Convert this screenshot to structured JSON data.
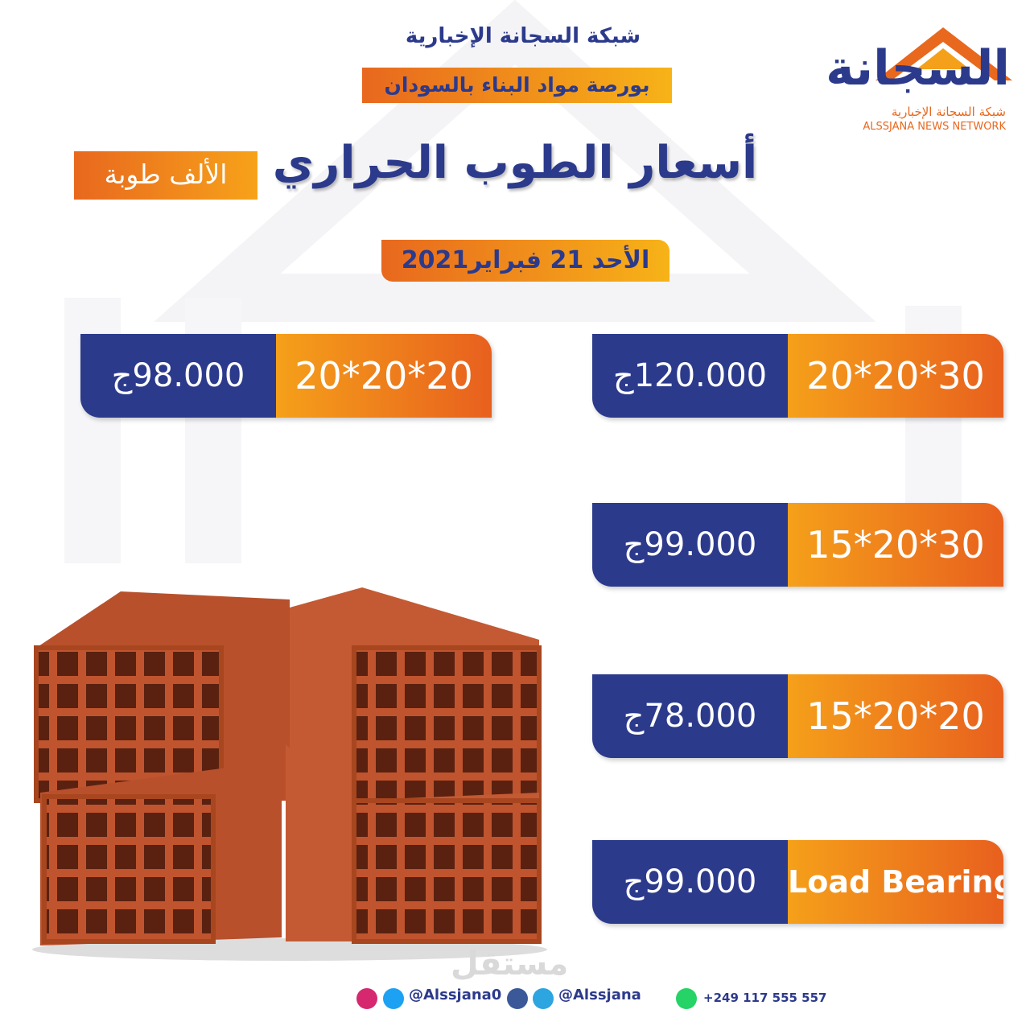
{
  "header": {
    "network": "شبكة السجانة الإخبارية",
    "subtitle": "بورصة مواد البناء بالسودان"
  },
  "logo": {
    "name": "السجانة",
    "tagline": "شبكة السجانة الإخبارية",
    "english": "ALSSJANA NEWS NETWORK"
  },
  "title": "أسعار الطوب الحراري",
  "unit": "الألف طوبة",
  "date": "الأحد 21 فبراير2021",
  "prices": [
    {
      "size": "20*20*30",
      "price": "120.000ج"
    },
    {
      "size": "20*20*20",
      "price": "98.000ج"
    },
    {
      "size": "15*20*30",
      "price": "99.000ج"
    },
    {
      "size": "15*20*20",
      "price": "78.000ج"
    },
    {
      "size": "Load Bearing",
      "price": "99.000ج"
    }
  ],
  "watermark": "مستقل",
  "footer": {
    "handle_1": "@Alssjana0",
    "handle_2": "@Alssjana",
    "phone": "+249 117 555 557"
  }
}
